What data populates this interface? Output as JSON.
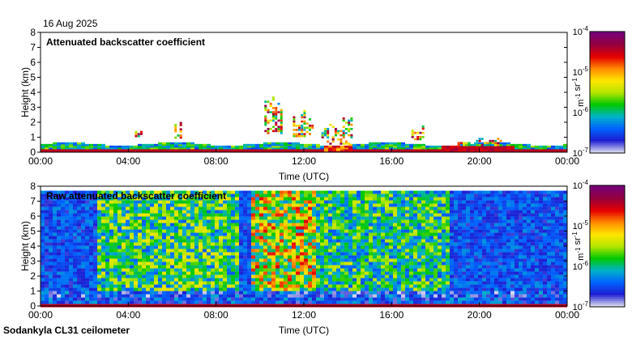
{
  "date": "16 Aug 2025",
  "footer": "Sodankyla CL31 ceilometer",
  "colors": {
    "background": "#ffffff",
    "colormap": [
      "#dcdcf0",
      "#1e1ed2",
      "#0064ff",
      "#00b4c8",
      "#00c800",
      "#b4e600",
      "#ffe600",
      "#ff8c00",
      "#e60000",
      "#96003c",
      "#780078"
    ]
  },
  "chart_data": [
    {
      "type": "heatmap",
      "title": "Attenuated backscatter coefficient",
      "xlabel": "Time (UTC)",
      "ylabel": "Height (km)",
      "x_ticks": [
        "00:00",
        "04:00",
        "08:00",
        "12:00",
        "16:00",
        "20:00",
        "00:00"
      ],
      "xlim_hours": [
        0,
        24
      ],
      "y_ticks": [
        "0",
        "1",
        "2",
        "3",
        "4",
        "5",
        "6",
        "7",
        "8"
      ],
      "ylim_km": [
        0,
        8
      ],
      "colorbar": {
        "label": "m-1 sr-1",
        "ticks": [
          {
            "base": "10",
            "exp": "-4"
          },
          {
            "base": "10",
            "exp": "-5"
          },
          {
            "base": "10",
            "exp": "-6"
          },
          {
            "base": "10",
            "exp": "-7"
          }
        ],
        "log_range": [
          -7,
          -4
        ],
        "scale": "log"
      },
      "features": {
        "boundary_layer_top_km": 0.5,
        "surface_layer_colour": "red",
        "cloud_patches": [
          {
            "start_h": 4.3,
            "end_h": 4.6,
            "base_km": 1.0,
            "top_km": 1.4
          },
          {
            "start_h": 6.1,
            "end_h": 6.4,
            "base_km": 0.9,
            "top_km": 2.2
          },
          {
            "start_h": 10.2,
            "end_h": 11.0,
            "base_km": 1.2,
            "top_km": 3.8
          },
          {
            "start_h": 11.5,
            "end_h": 12.4,
            "base_km": 1.0,
            "top_km": 3.0
          },
          {
            "start_h": 12.8,
            "end_h": 14.2,
            "base_km": 0.5,
            "top_km": 2.6
          },
          {
            "start_h": 16.9,
            "end_h": 17.5,
            "base_km": 0.8,
            "top_km": 1.8
          },
          {
            "start_h": 19.0,
            "end_h": 21.0,
            "base_km": 0.4,
            "top_km": 1.1
          }
        ]
      }
    },
    {
      "type": "heatmap",
      "title": "Raw attenuated backscatter coefficient",
      "xlabel": "Time (UTC)",
      "ylabel": "Height (km)",
      "x_ticks": [
        "00:00",
        "04:00",
        "08:00",
        "12:00",
        "16:00",
        "20:00",
        "00:00"
      ],
      "xlim_hours": [
        0,
        24
      ],
      "y_ticks": [
        "0",
        "1",
        "2",
        "3",
        "4",
        "5",
        "6",
        "7",
        "8"
      ],
      "ylim_km": [
        0,
        8
      ],
      "colorbar": {
        "label": "m-1 sr-1",
        "ticks": [
          {
            "base": "10",
            "exp": "-4"
          },
          {
            "base": "10",
            "exp": "-5"
          },
          {
            "base": "10",
            "exp": "-6"
          },
          {
            "base": "10",
            "exp": "-7"
          }
        ],
        "log_range": [
          -7,
          -4
        ],
        "scale": "log"
      },
      "features": {
        "noise_top_km": 7.7,
        "noise_enhanced_hours": [
          {
            "start_h": 2.5,
            "end_h": 9.0,
            "level": 0.45
          },
          {
            "start_h": 9.5,
            "end_h": 12.5,
            "level": 0.62
          },
          {
            "start_h": 12.5,
            "end_h": 18.5,
            "level": 0.42
          }
        ],
        "surface_layer_colour": "red"
      }
    }
  ]
}
